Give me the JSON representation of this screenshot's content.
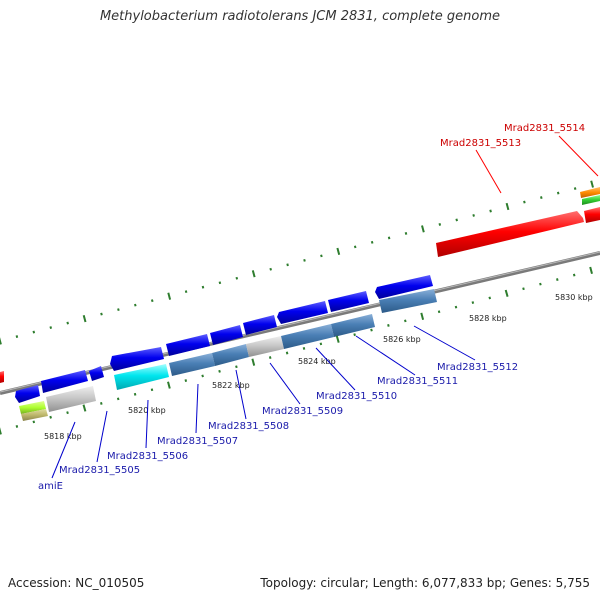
{
  "title": "Methylobacterium radiotolerans JCM 2831, complete genome",
  "footer": {
    "accession": "Accession: NC_010505",
    "summary": "Topology: circular; Length: 6,077,833 bp; Genes: 5,755"
  },
  "scale_labels": [
    "5818 kbp",
    "5820 kbp",
    "5822 kbp",
    "5824 kbp",
    "5826 kbp",
    "5828 kbp",
    "5830 kbp"
  ],
  "gene_labels_top": [
    "Mrad2831_5514",
    "Mrad2831_5513"
  ],
  "gene_labels_bottom": [
    "Mrad2831_5512",
    "Mrad2831_5511",
    "Mrad2831_5510",
    "Mrad2831_5509",
    "Mrad2831_5508",
    "Mrad2831_5507",
    "Mrad2831_5506",
    "Mrad2831_5505",
    "amiE"
  ],
  "colors": {
    "backbone": "#808080",
    "tick": "#2e7d2e",
    "forward_gene": "#ff0000",
    "reverse_gene": "#0000ee",
    "steelblue_gene": "#4a7fb5",
    "cyan_gene": "#00e5ee",
    "gray_gene": "#c8c8c8",
    "green_gene": "#32cd32",
    "orange_gene": "#ff8c00",
    "lime_gene": "#adff2f",
    "khaki_gene": "#bdb76b"
  }
}
